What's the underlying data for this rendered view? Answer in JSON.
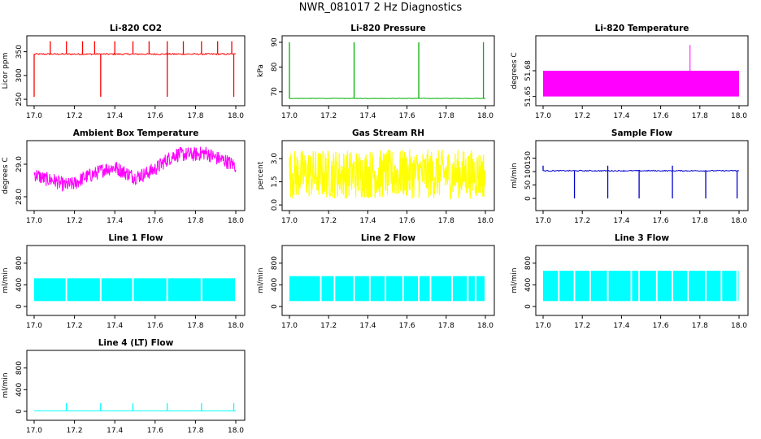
{
  "figure": {
    "title": "NWR_081017 2 Hz Diagnostics"
  },
  "chart_data": [
    {
      "id": "co2",
      "type": "line",
      "title": "Li-820 CO2",
      "ylabel": "Licor ppm",
      "color": "#ff0000",
      "xlim": [
        17.0,
        18.0
      ],
      "ylim": [
        245,
        375
      ],
      "xticks": [
        "17.0",
        "17.2",
        "17.4",
        "17.6",
        "17.8",
        "18.0"
      ],
      "yticks": [
        {
          "v": 250,
          "label": "250"
        },
        {
          "v": 300,
          "label": "300"
        },
        {
          "v": 350,
          "label": "350"
        }
      ],
      "baseline": 345,
      "noise": 3,
      "spikes_up": [
        17.08,
        17.16,
        17.24,
        17.3,
        17.4,
        17.49,
        17.57,
        17.66,
        17.74,
        17.83,
        17.91,
        17.98
      ],
      "spikes_up_value": 372,
      "spikes_down": [
        17.0,
        17.33,
        17.66,
        17.99
      ],
      "spikes_down_value": 255
    },
    {
      "id": "pressure",
      "type": "line",
      "title": "Li-820 Pressure",
      "ylabel": "kPa",
      "color": "#00b000",
      "xlim": [
        17.0,
        18.0
      ],
      "ylim": [
        66,
        91
      ],
      "xticks": [
        "17.0",
        "17.2",
        "17.4",
        "17.6",
        "17.8",
        "18.0"
      ],
      "yticks": [
        {
          "v": 70,
          "label": "70"
        },
        {
          "v": 80,
          "label": "80"
        },
        {
          "v": 90,
          "label": "90"
        }
      ],
      "baseline": 67.3,
      "noise": 0.15,
      "spikes_up": [
        17.0,
        17.33,
        17.66,
        17.99
      ],
      "spikes_up_value": 90
    },
    {
      "id": "temperature",
      "type": "area",
      "title": "Li-820 Temperature",
      "ylabel": "degrees C",
      "color": "#ff00ff",
      "xlim": [
        17.0,
        18.0
      ],
      "ylim": [
        51.645,
        51.705
      ],
      "xticks": [
        "17.0",
        "17.2",
        "17.4",
        "17.6",
        "17.8",
        "18.0"
      ],
      "yticks": [
        {
          "v": 51.65,
          "label": "51.65"
        },
        {
          "v": 51.675,
          "label": "51.68"
        }
      ],
      "band_low": 51.65,
      "band_high": 51.675,
      "spikes_up": [
        17.75
      ],
      "spikes_up_value": 51.7
    },
    {
      "id": "ambient",
      "type": "line",
      "title": "Ambient Box Temperature",
      "ylabel": "degrees C",
      "color": "#ff00ff",
      "xlim": [
        17.0,
        18.0
      ],
      "ylim": [
        27.7,
        29.6
      ],
      "xticks": [
        "17.0",
        "17.2",
        "17.4",
        "17.6",
        "17.8",
        "18.0"
      ],
      "yticks": [
        {
          "v": 28.0,
          "label": "28.0"
        },
        {
          "v": 29.0,
          "label": "29.0"
        }
      ],
      "trend_x": [
        17.0,
        17.05,
        17.1,
        17.15,
        17.2,
        17.25,
        17.3,
        17.35,
        17.4,
        17.45,
        17.5,
        17.55,
        17.6,
        17.65,
        17.7,
        17.75,
        17.8,
        17.85,
        17.9,
        17.95,
        18.0
      ],
      "trend_y": [
        28.7,
        28.55,
        28.5,
        28.35,
        28.4,
        28.6,
        28.7,
        28.85,
        28.9,
        28.75,
        28.6,
        28.7,
        28.85,
        29.1,
        29.3,
        29.3,
        29.3,
        29.35,
        29.2,
        29.1,
        28.95
      ],
      "noise": 0.45
    },
    {
      "id": "rh",
      "type": "line",
      "title": "Gas Stream RH",
      "ylabel": "percent",
      "color": "#ffff00",
      "xlim": [
        17.0,
        18.0
      ],
      "ylim": [
        -0.1,
        3.9
      ],
      "xticks": [
        "17.0",
        "17.2",
        "17.4",
        "17.6",
        "17.8",
        "18.0"
      ],
      "yticks": [
        {
          "v": 0.0,
          "label": "0.0"
        },
        {
          "v": 1.5,
          "label": "1.5"
        },
        {
          "v": 3.0,
          "label": "3.0"
        }
      ],
      "band_low": 0.4,
      "band_high": 3.6
    },
    {
      "id": "sample_flow",
      "type": "line",
      "title": "Sample Flow",
      "ylabel": "ml/min",
      "color": "#0000cc",
      "xlim": [
        17.0,
        18.0
      ],
      "ylim": [
        -30,
        200
      ],
      "xticks": [
        "17.0",
        "17.2",
        "17.4",
        "17.6",
        "17.8",
        "18.0"
      ],
      "yticks": [
        {
          "v": 0,
          "label": "0"
        },
        {
          "v": 50,
          "label": "50"
        },
        {
          "v": 100,
          "label": "100"
        },
        {
          "v": 150,
          "label": "150"
        }
      ],
      "baseline": 103,
      "noise": 4,
      "spikes_down": [
        17.16,
        17.33,
        17.49,
        17.66,
        17.83,
        17.99
      ],
      "spikes_down_value": 0,
      "spikes_up": [
        17.0,
        17.33,
        17.66
      ],
      "spikes_up_value": 122
    },
    {
      "id": "line1",
      "type": "area",
      "title": "Line 1 Flow",
      "ylabel": "ml/min",
      "color": "#00ffff",
      "xlim": [
        17.0,
        18.0
      ],
      "ylim": [
        -90,
        1050
      ],
      "xticks": [
        "17.0",
        "17.2",
        "17.4",
        "17.6",
        "17.8",
        "18.0"
      ],
      "yticks": [
        {
          "v": 0,
          "label": "0"
        },
        {
          "v": 400,
          "label": "400"
        },
        {
          "v": 800,
          "label": "800"
        }
      ],
      "band_low": 100,
      "band_high": 520,
      "gaps": [
        17.16,
        17.33,
        17.49,
        17.66,
        17.83
      ]
    },
    {
      "id": "line2",
      "type": "area",
      "title": "Line 2 Flow",
      "ylabel": "ml/min",
      "color": "#00ffff",
      "xlim": [
        17.0,
        18.0
      ],
      "ylim": [
        -90,
        1050
      ],
      "xticks": [
        "17.0",
        "17.2",
        "17.4",
        "17.6",
        "17.8",
        "18.0"
      ],
      "yticks": [
        {
          "v": 0,
          "label": "0"
        },
        {
          "v": 400,
          "label": "400"
        },
        {
          "v": 800,
          "label": "800"
        }
      ],
      "band_low": 100,
      "band_high": 560,
      "gaps": [
        17.16,
        17.23,
        17.33,
        17.41,
        17.49,
        17.58,
        17.66,
        17.72,
        17.83,
        17.91,
        17.95
      ]
    },
    {
      "id": "line3",
      "type": "area",
      "title": "Line 3 Flow",
      "ylabel": "ml/min",
      "color": "#00ffff",
      "xlim": [
        17.0,
        18.0
      ],
      "ylim": [
        -90,
        1050
      ],
      "xticks": [
        "17.0",
        "17.2",
        "17.4",
        "17.6",
        "17.8",
        "18.0"
      ],
      "yticks": [
        {
          "v": 0,
          "label": "0"
        },
        {
          "v": 400,
          "label": "400"
        },
        {
          "v": 800,
          "label": "800"
        }
      ],
      "band_low": 100,
      "band_high": 660,
      "gaps": [
        17.08,
        17.16,
        17.24,
        17.33,
        17.45,
        17.49,
        17.58,
        17.66,
        17.74,
        17.83,
        17.91,
        17.99
      ]
    },
    {
      "id": "line4",
      "type": "line",
      "title": "Line 4 (LT) Flow",
      "ylabel": "ml/min",
      "color": "#00ffff",
      "xlim": [
        17.0,
        18.0
      ],
      "ylim": [
        -90,
        1050
      ],
      "xticks": [
        "17.0",
        "17.2",
        "17.4",
        "17.6",
        "17.8",
        "18.0"
      ],
      "yticks": [
        {
          "v": 0,
          "label": "0"
        },
        {
          "v": 400,
          "label": "400"
        },
        {
          "v": 800,
          "label": "800"
        }
      ],
      "baseline": 10,
      "noise": 4,
      "spikes_up": [
        17.16,
        17.33,
        17.49,
        17.66,
        17.83,
        17.99
      ],
      "spikes_up_value": 150
    }
  ]
}
